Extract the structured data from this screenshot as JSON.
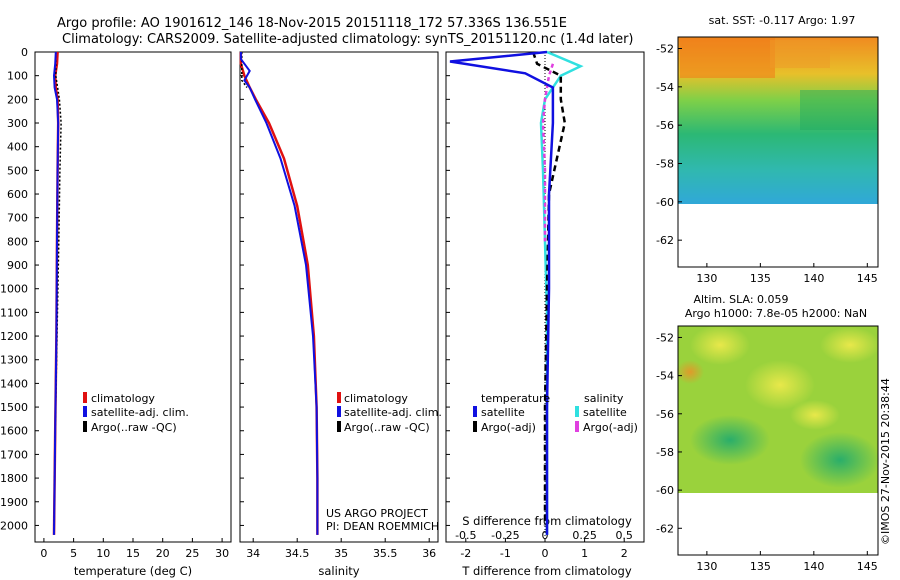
{
  "header": {
    "title_line1": "Argo profile: AO 1901612_146 18-Nov-2015 20151118_172 57.336S 136.551E",
    "title_line2": "Climatology: CARS2009. Satellite-adjusted climatology: synTS_20151120.nc (1.4d later)"
  },
  "sst_title": "sat. SST: -0.117 Argo: 1.97",
  "sla_title1": "Altim. SLA: 0.059",
  "sla_title2": "Argo h1000: 7.8e-05 h2000: NaN",
  "credit_vertical": "©IMOS 27-Nov-2015 20:38:44",
  "project_line1": "US ARGO PROJECT",
  "project_line2": "PI: DEAN ROEMMICH",
  "colors": {
    "climatology": "#e01010",
    "satellite": "#1010e0",
    "argo": "#000000",
    "salinity_satellite": "#30e0e0",
    "salinity_argo": "#e040e0"
  },
  "legends": {
    "temperature_panel": [
      "climatology",
      "satellite-adj. clim.",
      "Argo(..raw -QC)"
    ],
    "salinity_panel": [
      "climatology",
      "satellite-adj. clim.",
      "Argo(..raw -QC)"
    ],
    "diff_panel": {
      "temperature_header": "temperature",
      "salinity_header": "salinity",
      "temperature_items": [
        "satellite",
        "Argo(-adj)"
      ],
      "salinity_items": [
        "satellite",
        "Argo(-adj)"
      ]
    }
  },
  "chart_data": [
    {
      "type": "line",
      "panel": "temperature",
      "xlabel": "temperature (deg C)",
      "ylabel": "",
      "xlim": [
        -1.5,
        31.5
      ],
      "ylim": [
        2070,
        0
      ],
      "xticks": [
        0,
        5,
        10,
        15,
        20,
        25,
        30
      ],
      "yticks": [
        0,
        100,
        200,
        300,
        400,
        500,
        600,
        700,
        800,
        900,
        1000,
        1100,
        1200,
        1300,
        1400,
        1500,
        1600,
        1700,
        1800,
        1900,
        2000
      ],
      "series": [
        {
          "name": "climatology",
          "points": [
            [
              2.3,
              0
            ],
            [
              2.2,
              50
            ],
            [
              1.9,
              100
            ],
            [
              2.0,
              150
            ],
            [
              2.3,
              200
            ],
            [
              2.4,
              300
            ],
            [
              2.3,
              500
            ],
            [
              2.2,
              800
            ],
            [
              2.1,
              1200
            ],
            [
              1.9,
              1600
            ],
            [
              1.7,
              2040
            ]
          ]
        },
        {
          "name": "satellite-adj. clim.",
          "points": [
            [
              2.0,
              0
            ],
            [
              1.9,
              50
            ],
            [
              1.7,
              100
            ],
            [
              1.8,
              150
            ],
            [
              2.2,
              200
            ],
            [
              2.4,
              300
            ],
            [
              2.3,
              500
            ],
            [
              2.2,
              800
            ],
            [
              2.1,
              1200
            ],
            [
              1.9,
              1600
            ],
            [
              1.7,
              2040
            ]
          ]
        },
        {
          "name": "Argo(..raw -QC)",
          "points": [
            [
              2.0,
              0
            ],
            [
              2.0,
              100
            ],
            [
              2.6,
              200
            ],
            [
              2.9,
              300
            ],
            [
              2.7,
              500
            ],
            [
              2.5,
              800
            ],
            [
              2.2,
              1200
            ],
            [
              1.9,
              1600
            ],
            [
              1.7,
              2020
            ]
          ]
        }
      ]
    },
    {
      "type": "line",
      "panel": "salinity",
      "xlabel": "salinity",
      "ylabel": "",
      "xlim": [
        33.85,
        36.1
      ],
      "ylim": [
        2070,
        0
      ],
      "xticks": [
        34,
        34.5,
        35,
        35.5,
        36
      ],
      "series": [
        {
          "name": "climatology",
          "points": [
            [
              33.86,
              0
            ],
            [
              33.86,
              50
            ],
            [
              33.9,
              100
            ],
            [
              33.96,
              150
            ],
            [
              34.03,
              200
            ],
            [
              34.18,
              300
            ],
            [
              34.35,
              450
            ],
            [
              34.5,
              650
            ],
            [
              34.62,
              900
            ],
            [
              34.69,
              1200
            ],
            [
              34.72,
              1500
            ],
            [
              34.73,
              1800
            ],
            [
              34.73,
              2040
            ]
          ]
        },
        {
          "name": "satellite-adj. clim.",
          "points": [
            [
              33.86,
              0
            ],
            [
              33.86,
              30
            ],
            [
              33.96,
              80
            ],
            [
              33.9,
              120
            ],
            [
              33.96,
              150
            ],
            [
              34.02,
              200
            ],
            [
              34.15,
              300
            ],
            [
              34.31,
              450
            ],
            [
              34.47,
              650
            ],
            [
              34.6,
              900
            ],
            [
              34.68,
              1200
            ],
            [
              34.72,
              1500
            ],
            [
              34.73,
              1800
            ],
            [
              34.73,
              2040
            ]
          ]
        },
        {
          "name": "Argo(..raw -QC)",
          "points": [
            [
              33.87,
              0
            ],
            [
              33.87,
              120
            ],
            [
              33.93,
              150
            ]
          ]
        }
      ]
    },
    {
      "type": "line",
      "panel": "difference",
      "xlabel": "T difference from climatology",
      "x2label": "S difference from climatology",
      "xlim": [
        -2.5,
        2.5
      ],
      "ylim": [
        2070,
        0
      ],
      "xticks": [
        -2,
        -1,
        0,
        1,
        2
      ],
      "x2ticks": [
        -0.5,
        -0.25,
        0,
        0.25,
        0.5
      ],
      "series": [
        {
          "name": "temperature satellite",
          "points": [
            [
              0.05,
              0
            ],
            [
              -2.4,
              40
            ],
            [
              -0.5,
              90
            ],
            [
              0.2,
              150
            ],
            [
              0.2,
              300
            ],
            [
              0.1,
              600
            ],
            [
              0.1,
              1000
            ],
            [
              0.05,
              1500
            ],
            [
              0.05,
              2040
            ]
          ]
        },
        {
          "name": "temperature Argo(-adj)",
          "points": [
            [
              -0.3,
              0
            ],
            [
              -0.2,
              50
            ],
            [
              0.4,
              100
            ],
            [
              0.4,
              200
            ],
            [
              0.5,
              300
            ],
            [
              0.3,
              450
            ],
            [
              0.1,
              600
            ],
            [
              0.05,
              1000
            ],
            [
              0.0,
              1500
            ],
            [
              0.0,
              2000
            ]
          ]
        },
        {
          "name": "salinity satellite",
          "points": [
            [
              0.05,
              0
            ],
            [
              0.9,
              60
            ],
            [
              0.4,
              100
            ],
            [
              0.0,
              200
            ],
            [
              -0.1,
              300
            ],
            [
              -0.05,
              500
            ],
            [
              0.0,
              800
            ],
            [
              0.05,
              1100
            ],
            [
              0.05,
              1500
            ],
            [
              0.05,
              2040
            ]
          ]
        },
        {
          "name": "salinity Argo(-adj)",
          "points": [
            [
              0.2,
              50
            ],
            [
              0.1,
              100
            ],
            [
              0.0,
              200
            ],
            [
              -0.05,
              300
            ],
            [
              0.0,
              500
            ],
            [
              0.0,
              800
            ]
          ]
        }
      ]
    }
  ],
  "maps": {
    "sst": {
      "xticks": [
        "130",
        "135",
        "140",
        "145"
      ],
      "yticks": [
        "-52",
        "-54",
        "-56",
        "-58",
        "-60",
        "-62"
      ]
    },
    "sla": {
      "xticks": [
        "130",
        "135",
        "140",
        "145"
      ],
      "yticks": [
        "-52",
        "-54",
        "-56",
        "-58",
        "-60",
        "-62"
      ]
    }
  }
}
